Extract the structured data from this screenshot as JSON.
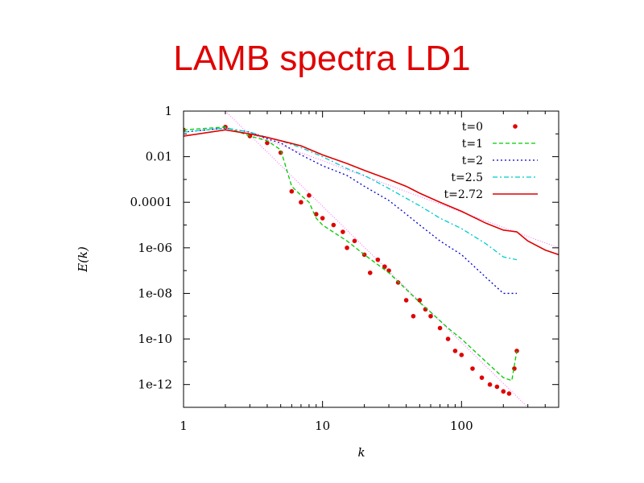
{
  "slide": {
    "title": "LAMB spectra LD1"
  },
  "chart_data": {
    "type": "line",
    "xscale": "log",
    "yscale": "log",
    "xlim": [
      1,
      500
    ],
    "ylim": [
      1e-13,
      1
    ],
    "xlabel": "k",
    "ylabel": "E(k)",
    "x_ticks": [
      1,
      10,
      100
    ],
    "x_tick_labels": [
      "1",
      "10",
      "100"
    ],
    "y_ticks": [
      1,
      0.01,
      0.0001,
      1e-06,
      1e-08,
      1e-10,
      1e-12
    ],
    "y_tick_labels": [
      "1",
      "0.01",
      "0.0001",
      "1e-06",
      "1e-08",
      "1e-10",
      "1e-12"
    ],
    "grid": false,
    "legend_position": "top-right",
    "series": [
      {
        "name": "t=0",
        "style": "points",
        "color": "#e00000",
        "points": [
          [
            1,
            0.15
          ],
          [
            2,
            0.2
          ],
          [
            3,
            0.08
          ],
          [
            4,
            0.04
          ],
          [
            5,
            0.015
          ],
          [
            6,
            0.0003
          ],
          [
            7,
            0.0001
          ],
          [
            8,
            0.0002
          ],
          [
            9,
            3e-05
          ],
          [
            10,
            2e-05
          ],
          [
            12,
            1e-05
          ],
          [
            14,
            5e-06
          ],
          [
            15,
            1e-06
          ],
          [
            17,
            2e-06
          ],
          [
            20,
            5e-07
          ],
          [
            22,
            8e-08
          ],
          [
            25,
            3e-07
          ],
          [
            28,
            1.5e-07
          ],
          [
            30,
            1e-07
          ],
          [
            35,
            3e-08
          ],
          [
            40,
            5e-09
          ],
          [
            45,
            1e-09
          ],
          [
            50,
            5e-09
          ],
          [
            55,
            2e-09
          ],
          [
            60,
            1e-09
          ],
          [
            70,
            3e-10
          ],
          [
            80,
            1e-10
          ],
          [
            90,
            3e-11
          ],
          [
            100,
            2e-11
          ],
          [
            120,
            5e-12
          ],
          [
            140,
            2e-12
          ],
          [
            160,
            1e-12
          ],
          [
            180,
            8e-13
          ],
          [
            200,
            5e-13
          ],
          [
            220,
            4e-13
          ],
          [
            240,
            5e-12
          ],
          [
            250,
            3e-11
          ]
        ]
      },
      {
        "name": "t=1",
        "style": "dashed",
        "color": "#00cc00",
        "points": [
          [
            1,
            0.15
          ],
          [
            2,
            0.2
          ],
          [
            3,
            0.08
          ],
          [
            4,
            0.05
          ],
          [
            5,
            0.02
          ],
          [
            6,
            0.0005
          ],
          [
            7,
            0.0002
          ],
          [
            8,
            0.0001
          ],
          [
            9,
            2e-05
          ],
          [
            10,
            1e-05
          ],
          [
            15,
            2e-06
          ],
          [
            20,
            5e-07
          ],
          [
            30,
            8e-08
          ],
          [
            40,
            1.5e-08
          ],
          [
            50,
            4e-09
          ],
          [
            60,
            1.5e-09
          ],
          [
            80,
            3e-10
          ],
          [
            100,
            1e-10
          ],
          [
            150,
            1e-11
          ],
          [
            200,
            2e-12
          ],
          [
            230,
            1.5e-12
          ],
          [
            250,
            3e-11
          ]
        ]
      },
      {
        "name": "t=2",
        "style": "dotted",
        "color": "#0000cc",
        "points": [
          [
            1,
            0.12
          ],
          [
            2,
            0.18
          ],
          [
            3,
            0.12
          ],
          [
            4,
            0.06
          ],
          [
            5,
            0.04
          ],
          [
            7,
            0.012
          ],
          [
            10,
            0.004
          ],
          [
            15,
            0.0015
          ],
          [
            20,
            0.0005
          ],
          [
            30,
            0.00012
          ],
          [
            40,
            3e-05
          ],
          [
            50,
            1e-05
          ],
          [
            70,
            2e-06
          ],
          [
            100,
            5e-07
          ],
          [
            150,
            5e-08
          ],
          [
            200,
            1e-08
          ],
          [
            250,
            1e-08
          ]
        ]
      },
      {
        "name": "t=2.5",
        "style": "dashdot",
        "color": "#00cccc",
        "points": [
          [
            1,
            0.12
          ],
          [
            2,
            0.18
          ],
          [
            3,
            0.12
          ],
          [
            4,
            0.07
          ],
          [
            5,
            0.05
          ],
          [
            7,
            0.025
          ],
          [
            10,
            0.01
          ],
          [
            15,
            0.003
          ],
          [
            20,
            0.0015
          ],
          [
            30,
            0.0004
          ],
          [
            40,
            0.00015
          ],
          [
            50,
            7e-05
          ],
          [
            70,
            2e-05
          ],
          [
            100,
            7e-06
          ],
          [
            150,
            1.5e-06
          ],
          [
            200,
            4e-07
          ],
          [
            250,
            3e-07
          ]
        ]
      },
      {
        "name": "t=2.72",
        "style": "solid",
        "color": "#e00000",
        "points": [
          [
            1,
            0.08
          ],
          [
            2,
            0.15
          ],
          [
            3,
            0.1
          ],
          [
            4,
            0.07
          ],
          [
            5,
            0.05
          ],
          [
            7,
            0.03
          ],
          [
            10,
            0.012
          ],
          [
            15,
            0.005
          ],
          [
            20,
            0.0025
          ],
          [
            30,
            0.001
          ],
          [
            40,
            0.0005
          ],
          [
            50,
            0.00025
          ],
          [
            70,
            0.0001
          ],
          [
            100,
            4e-05
          ],
          [
            150,
            1.2e-05
          ],
          [
            200,
            6e-06
          ],
          [
            250,
            5e-06
          ],
          [
            300,
            2e-06
          ],
          [
            400,
            8e-07
          ],
          [
            500,
            5e-07
          ]
        ]
      }
    ],
    "reference_lines": [
      {
        "points": [
          [
            2,
            1
          ],
          [
            300,
            1e-13
          ]
        ],
        "color": "#ff66ff",
        "style": "dotted-thin"
      },
      {
        "points": [
          [
            3,
            0.1
          ],
          [
            500,
            1e-06
          ]
        ],
        "color": "#ff66ff",
        "style": "dotted-thin"
      }
    ]
  }
}
